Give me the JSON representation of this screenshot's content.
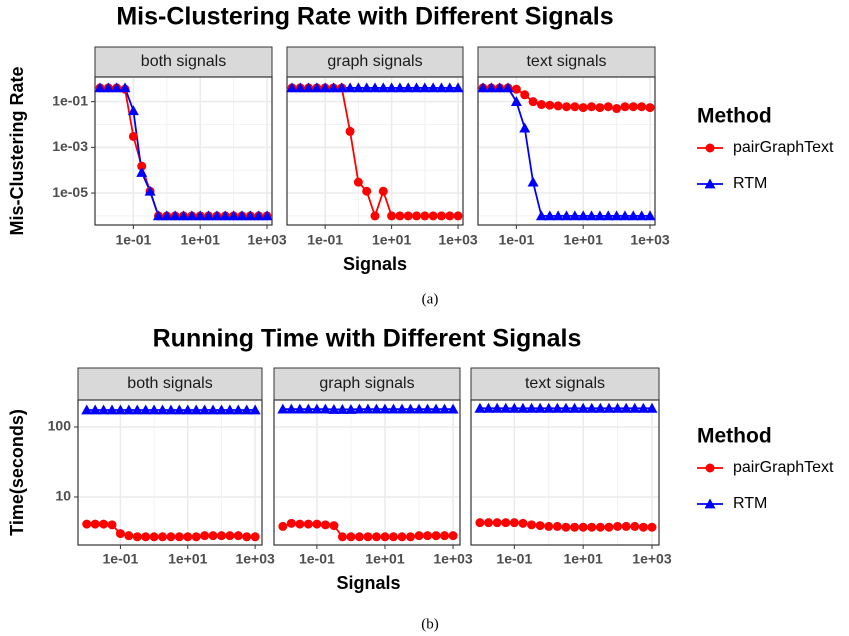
{
  "chart_data": [
    {
      "type": "line",
      "title": "Mis-Clustering Rate with Different Signals",
      "x_label": "Signals",
      "y_label": "Mis-Clustering Rate",
      "caption": "(a)",
      "legend_title": "Method",
      "x_scale": "log",
      "y_scale": "log",
      "grid": true,
      "facets": [
        "both signals",
        "graph signals",
        "text signals"
      ],
      "x": [
        0.01,
        0.01778,
        0.03162,
        0.05623,
        0.1,
        0.1778,
        0.3162,
        0.5623,
        1,
        1.778,
        3.162,
        5.623,
        10,
        17.78,
        31.62,
        56.23,
        100,
        177.8,
        316.2,
        562.3,
        1000
      ],
      "xlim": [
        0.0071,
        1410
      ],
      "ylim": [
        4e-07,
        1.2
      ],
      "xticks": [
        {
          "value": 0.1,
          "label": "1e-01"
        },
        {
          "value": 10,
          "label": "1e+01"
        },
        {
          "value": 1000,
          "label": "1e+03"
        }
      ],
      "x_minor_grid": [
        1,
        100
      ],
      "yticks": [
        {
          "value": 0.1,
          "label": "1e-01"
        },
        {
          "value": 0.001,
          "label": "1e-03"
        },
        {
          "value": 1e-05,
          "label": "1e-05"
        }
      ],
      "y_minor_grid": [
        0.01,
        0.0001,
        1e-06
      ],
      "series": [
        {
          "name": "pairGraphText",
          "color": "#ff0000",
          "marker": "circle",
          "values": [
            [
              0.4,
              0.4,
              0.4,
              0.35,
              0.003,
              0.00015,
              1.2e-05,
              1e-06,
              1e-06,
              1e-06,
              1e-06,
              1e-06,
              1e-06,
              1e-06,
              1e-06,
              1e-06,
              1e-06,
              1e-06,
              1e-06,
              1e-06,
              1e-06
            ],
            [
              0.4,
              0.4,
              0.4,
              0.4,
              0.4,
              0.4,
              0.4,
              0.005,
              3e-05,
              1.2e-05,
              1e-06,
              1.2e-05,
              1e-06,
              1e-06,
              1e-06,
              1e-06,
              1e-06,
              1e-06,
              1e-06,
              1e-06,
              1e-06
            ],
            [
              0.4,
              0.4,
              0.4,
              0.4,
              0.35,
              0.2,
              0.1,
              0.075,
              0.07,
              0.065,
              0.06,
              0.06,
              0.055,
              0.06,
              0.055,
              0.06,
              0.05,
              0.06,
              0.06,
              0.06,
              0.055
            ]
          ]
        },
        {
          "name": "RTM",
          "color": "#0000ff",
          "marker": "triangle",
          "values": [
            [
              0.4,
              0.4,
              0.4,
              0.4,
              0.04,
              8e-05,
              1.2e-05,
              1e-06,
              1e-06,
              1e-06,
              1e-06,
              1e-06,
              1e-06,
              1e-06,
              1e-06,
              1e-06,
              1e-06,
              1e-06,
              1e-06,
              1e-06,
              1e-06
            ],
            [
              0.4,
              0.4,
              0.4,
              0.4,
              0.4,
              0.4,
              0.4,
              0.4,
              0.4,
              0.4,
              0.4,
              0.4,
              0.4,
              0.4,
              0.4,
              0.4,
              0.4,
              0.4,
              0.4,
              0.4,
              0.4
            ],
            [
              0.4,
              0.4,
              0.4,
              0.4,
              0.1,
              0.007,
              3e-05,
              1e-06,
              1e-06,
              1e-06,
              1e-06,
              1e-06,
              1e-06,
              1e-06,
              1e-06,
              1e-06,
              1e-06,
              1e-06,
              1e-06,
              1e-06,
              1e-06
            ]
          ]
        }
      ]
    },
    {
      "type": "line",
      "title": "Running Time with Different Signals",
      "x_label": "Signals",
      "y_label": "Time(seconds)",
      "caption": "(b)",
      "legend_title": "Method",
      "x_scale": "log",
      "y_scale": "log",
      "grid": true,
      "facets": [
        "both signals",
        "graph signals",
        "text signals"
      ],
      "x": [
        0.01,
        0.01778,
        0.03162,
        0.05623,
        0.1,
        0.1778,
        0.3162,
        0.5623,
        1,
        1.778,
        3.162,
        5.623,
        10,
        17.78,
        31.62,
        56.23,
        100,
        177.8,
        316.2,
        562.3,
        1000
      ],
      "xlim": [
        0.0055,
        1600
      ],
      "ylim": [
        2.06,
        243
      ],
      "xticks": [
        {
          "value": 0.1,
          "label": "1e-01"
        },
        {
          "value": 10,
          "label": "1e+01"
        },
        {
          "value": 1000,
          "label": "1e+03"
        }
      ],
      "x_minor_grid": [
        1,
        100
      ],
      "yticks": [
        10,
        100
      ],
      "y_minor_grid": [],
      "series": [
        {
          "name": "pairGraphText",
          "color": "#ff0000",
          "marker": "circle",
          "values": [
            [
              4.1,
              4.1,
              4.1,
              4.0,
              3.0,
              2.8,
              2.7,
              2.7,
              2.7,
              2.7,
              2.7,
              2.7,
              2.7,
              2.7,
              2.8,
              2.8,
              2.8,
              2.8,
              2.8,
              2.7,
              2.7
            ],
            [
              3.8,
              4.2,
              4.1,
              4.1,
              4.1,
              4.0,
              3.9,
              2.7,
              2.7,
              2.7,
              2.7,
              2.7,
              2.7,
              2.7,
              2.7,
              2.7,
              2.8,
              2.8,
              2.8,
              2.8,
              2.8
            ],
            [
              4.3,
              4.3,
              4.3,
              4.3,
              4.3,
              4.2,
              4.0,
              3.9,
              3.8,
              3.8,
              3.7,
              3.7,
              3.7,
              3.7,
              3.7,
              3.7,
              3.8,
              3.8,
              3.8,
              3.7,
              3.7
            ]
          ]
        },
        {
          "name": "RTM",
          "color": "#0000ff",
          "marker": "triangle",
          "values": [
            [
              175,
              175,
              175,
              175,
              175,
              175,
              175,
              175,
              175,
              175,
              175,
              175,
              175,
              175,
              175,
              175,
              175,
              175,
              175,
              175,
              175
            ],
            [
              180,
              180,
              180,
              180,
              180,
              180,
              178,
              178,
              178,
              180,
              180,
              180,
              180,
              180,
              180,
              180,
              180,
              180,
              180,
              180,
              180
            ],
            [
              185,
              185,
              185,
              185,
              185,
              185,
              185,
              185,
              185,
              185,
              185,
              185,
              185,
              185,
              185,
              185,
              185,
              185,
              185,
              185,
              185
            ]
          ]
        }
      ]
    }
  ]
}
